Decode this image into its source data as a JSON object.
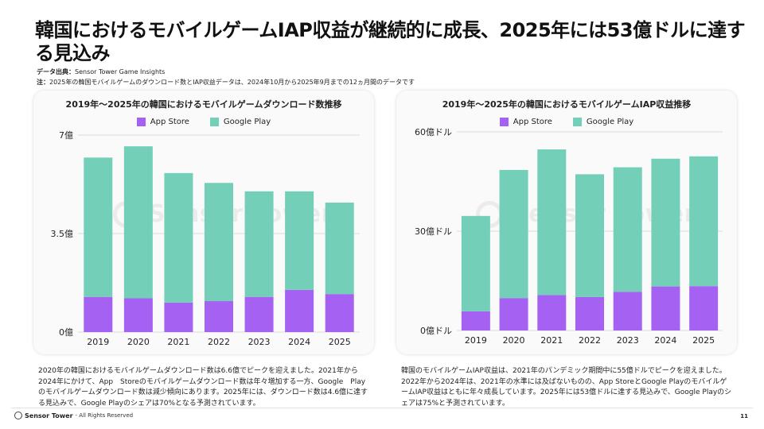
{
  "title": "韓国におけるモバイルゲームIAP収益が継続的に成長、2025年には53億ドルに達する見込み",
  "meta": {
    "source_label": "データ出典：",
    "source_value": "Sensor Tower Game Insights",
    "note_label": "注：",
    "note_value": "2025年の韓国モバイルゲームのダウンロード数とIAP収益データは、2024年10月から2025年9月までの12ヵ月間のデータです"
  },
  "legend": {
    "app_store": "App Store",
    "google_play": "Google Play"
  },
  "colors": {
    "app_store": "#a561f2",
    "google_play": "#73cfb8",
    "grid": "#dcdcdc"
  },
  "watermark": "Sensor Tower",
  "chart_data": [
    {
      "type": "bar",
      "stacked": true,
      "title": "2019年～2025年の韓国におけるモバイルゲームダウンロード数推移",
      "categories": [
        "2019",
        "2020",
        "2021",
        "2022",
        "2023",
        "2024",
        "2025"
      ],
      "series": [
        {
          "name": "App Store",
          "values": [
            1.25,
            1.2,
            1.05,
            1.1,
            1.25,
            1.5,
            1.35
          ]
        },
        {
          "name": "Google Play",
          "values": [
            4.95,
            5.4,
            4.6,
            4.2,
            3.75,
            3.5,
            3.25
          ]
        }
      ],
      "yticks": [
        0,
        3.5,
        7
      ],
      "ytick_labels": [
        "0億",
        "3.5億",
        "7億"
      ],
      "ylim": [
        0,
        7
      ],
      "legend": "top-center"
    },
    {
      "type": "bar",
      "stacked": true,
      "title": "2019年～2025年の韓国におけるモバイルゲームIAP収益推移",
      "categories": [
        "2019",
        "2020",
        "2021",
        "2022",
        "2023",
        "2024",
        "2025"
      ],
      "series": [
        {
          "name": "App Store",
          "values": [
            5.8,
            9.8,
            10.7,
            10.1,
            11.7,
            13.3,
            13.4
          ]
        },
        {
          "name": "Google Play",
          "values": [
            28.8,
            38.7,
            44.0,
            37.1,
            37.6,
            38.6,
            39.2
          ]
        }
      ],
      "yticks": [
        0,
        30,
        60
      ],
      "ytick_labels": [
        "0億ドル",
        "30億ドル",
        "60億ドル"
      ],
      "ylim": [
        0,
        60
      ],
      "legend": "top-center"
    }
  ],
  "descriptions": {
    "left": "2020年の韓国におけるモバイルゲームダウンロード数は6.6億でピークを迎えました。2021年から2024年にかけて、App　Storeのモバイルゲームダウンロード数は年々増加する一方、Google　Playのモバイルゲームダウンロード数は減少傾向にあります。2025年には、ダウンロード数は4.6億に達する見込みで、Google Playのシェアは70%となる予測されています。",
    "right": "韓国のモバイルゲームIAP収益は、2021年のパンデミック期間中に55億ドルでピークを迎えました。2022年から2024年は、2021年の水準には及ばないものの、App StoreとGoogle PlayのモバイルゲームIAP収益はともに年々成長しています。2025年には53億ドルに達する見込みで、Google Playのシェアは75%と予測されています。"
  },
  "footer": {
    "brand": "Sensor Tower",
    "rights": "- All Rights Reserved",
    "page": "11"
  }
}
